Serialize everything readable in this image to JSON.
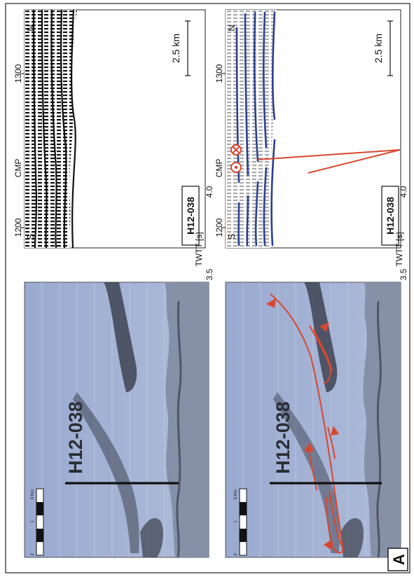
{
  "panel": {
    "letter": "A"
  },
  "colors": {
    "fault": "#d9472f",
    "horizon": "#2b3f8f",
    "map_water": "#a8b6d6",
    "map_shadow": "#2f3440",
    "seismic_black": "#111111",
    "seismic_grey": "#a9a9a9"
  },
  "maps": [
    {
      "id": "map-top",
      "line_label": "H12-038",
      "scale_labels": [
        "0 Km",
        "1",
        "2"
      ],
      "interpreted": false
    },
    {
      "id": "map-bottom",
      "line_label": "H12-038",
      "scale_labels": [
        "0 Km",
        "1",
        "2"
      ],
      "interpreted": true
    }
  ],
  "seismic": [
    {
      "id": "seismic-top",
      "line_label": "H12-038",
      "axis_label": "TWTT [s]",
      "cmp_label": "CMP",
      "cmp_ticks": [
        "1200",
        "1300"
      ],
      "twtt_ticks": [
        "3.5",
        "4.0"
      ],
      "dir_left": "S",
      "dir_right": "N",
      "scale_bar": "2.5 km",
      "interpreted": false
    },
    {
      "id": "seismic-bottom",
      "line_label": "H12-038",
      "axis_label": "TWTT [s]",
      "cmp_label": "CMP",
      "cmp_ticks": [
        "1200",
        "1300"
      ],
      "twtt_ticks": [
        "3.5",
        "4.0"
      ],
      "dir_left": "S",
      "dir_right": "N",
      "scale_bar": "2.5 km",
      "interpreted": true,
      "motion_symbols": [
        "out-of-page",
        "into-page"
      ]
    }
  ]
}
